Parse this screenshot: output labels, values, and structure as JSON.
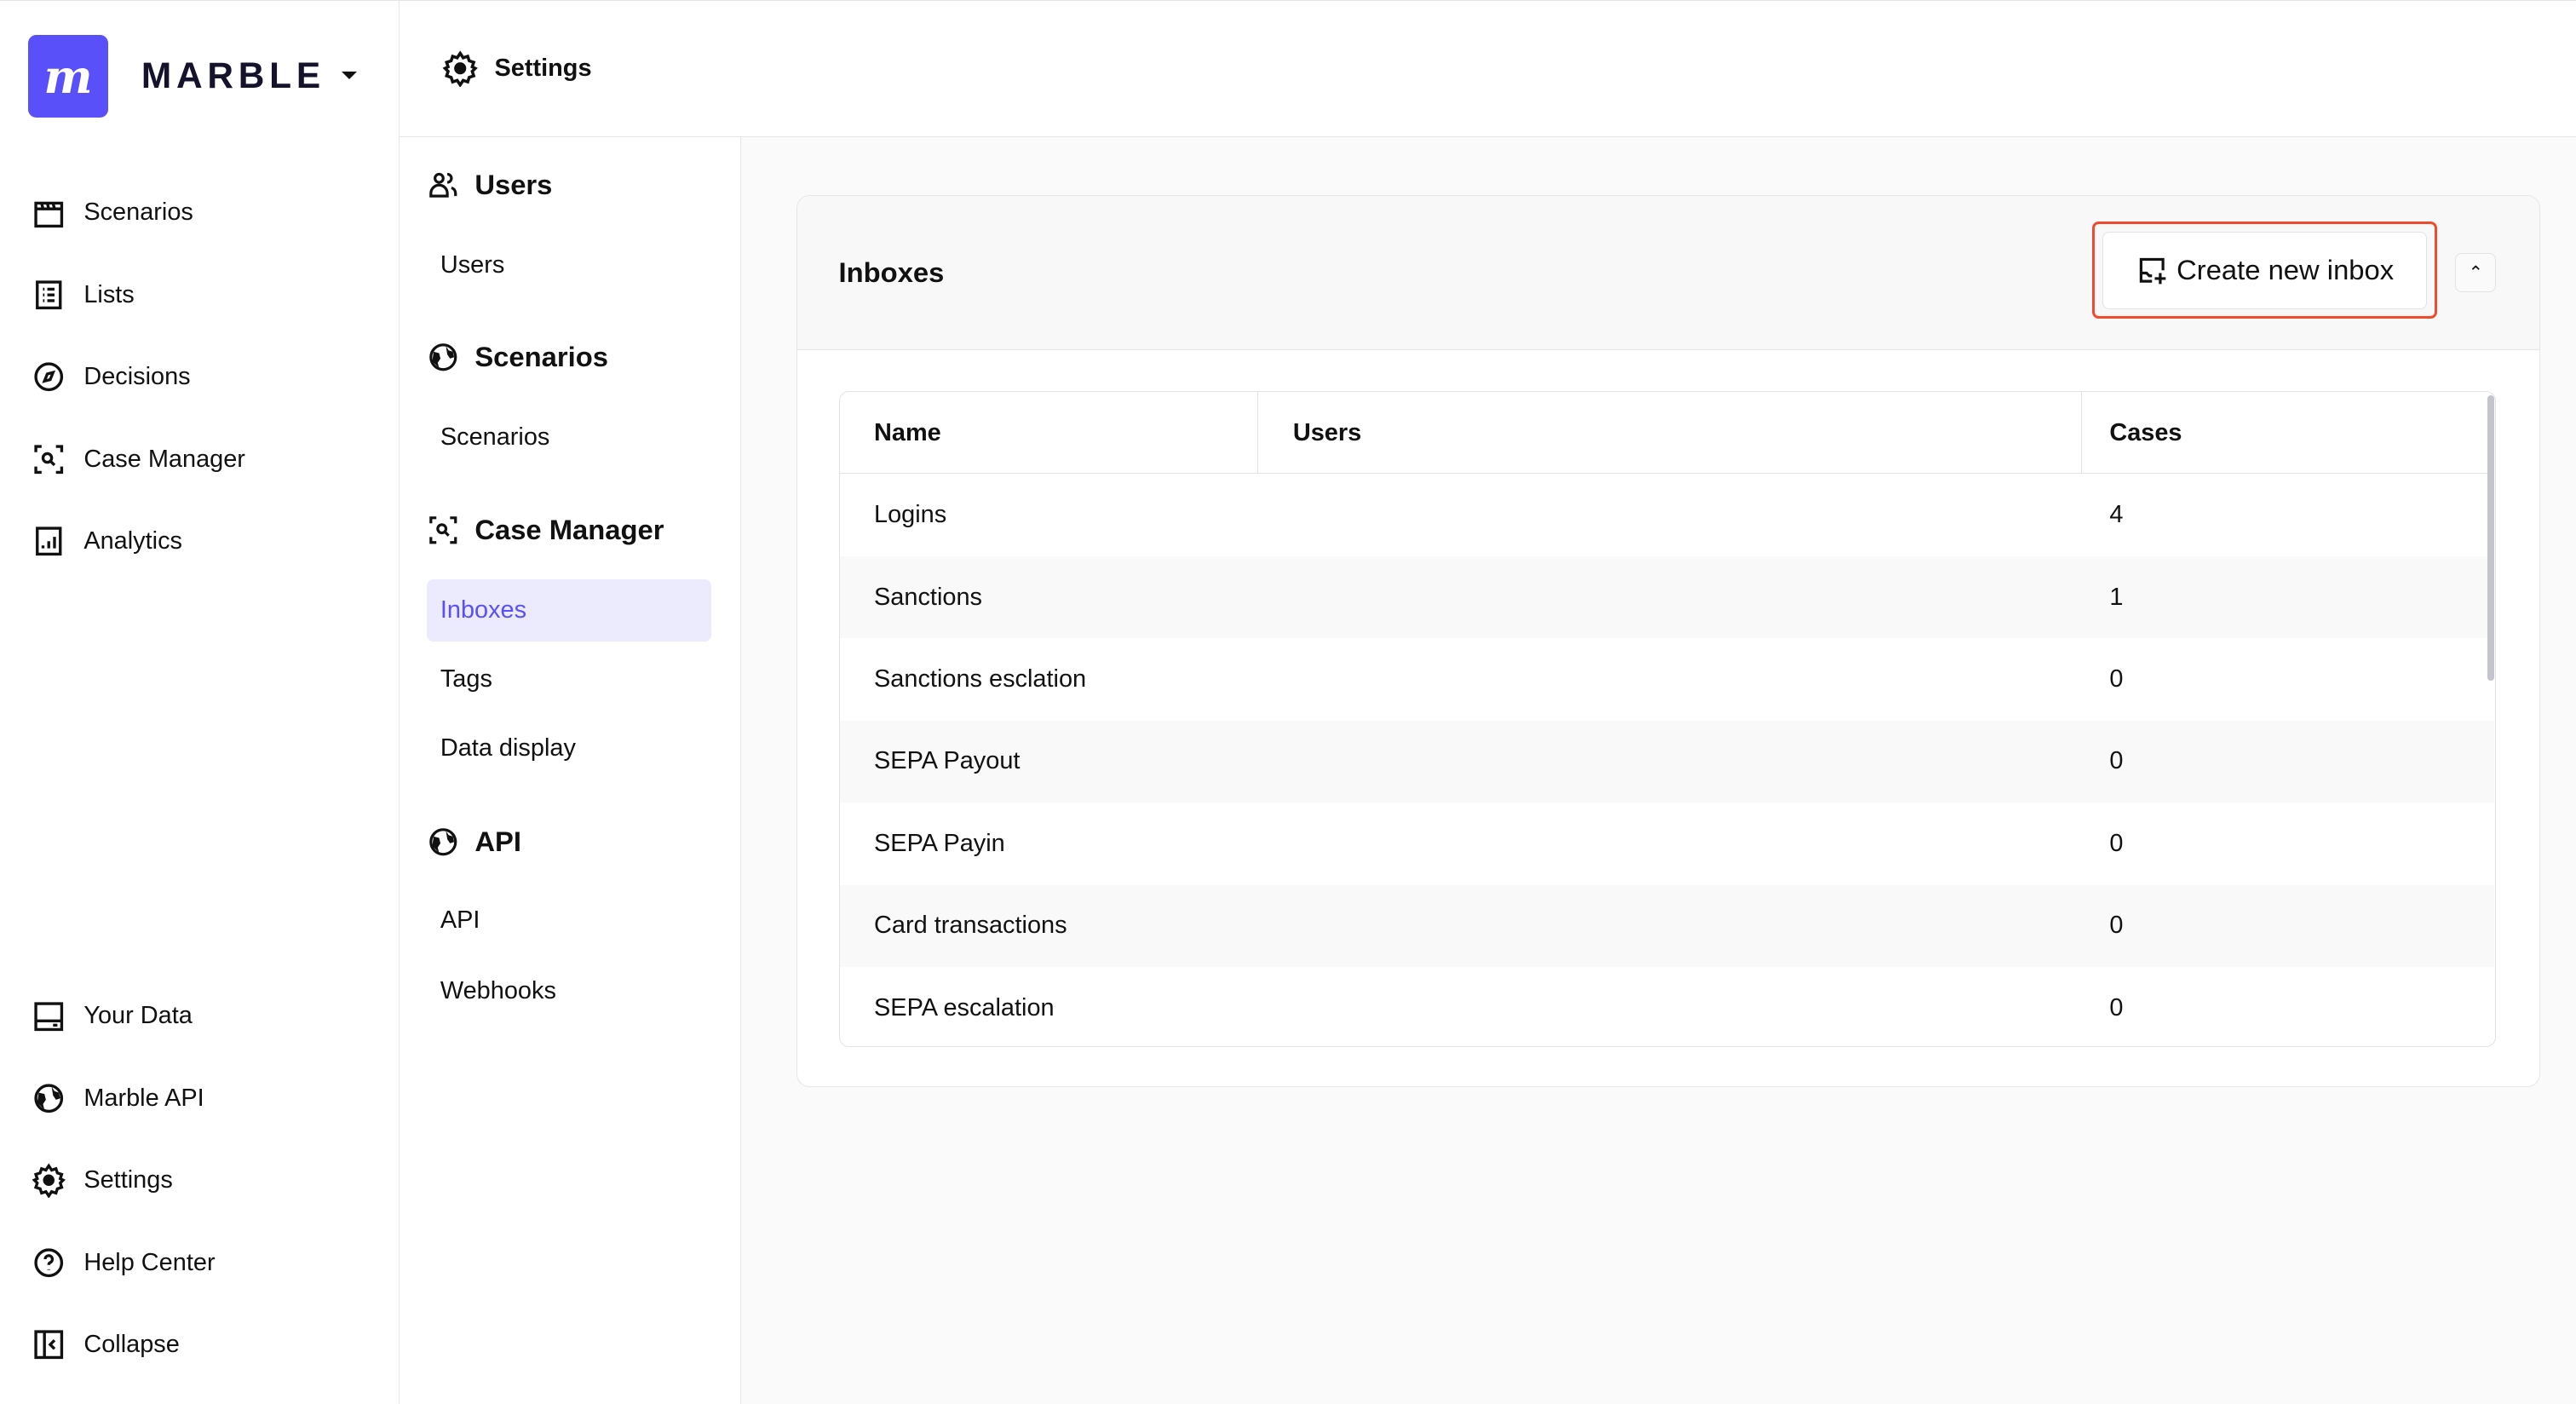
{
  "sidebar": {
    "brand": "MARBLE",
    "logo_letter": "m",
    "brand_color": "#5a50fa",
    "top_items": [
      {
        "label": "Scenarios",
        "icon": "clapperboard-icon"
      },
      {
        "label": "Lists",
        "icon": "list-icon"
      },
      {
        "label": "Decisions",
        "icon": "compass-icon"
      },
      {
        "label": "Case Manager",
        "icon": "case-search-icon"
      },
      {
        "label": "Analytics",
        "icon": "analytics-icon"
      }
    ],
    "bottom_items": [
      {
        "label": "Your Data",
        "icon": "data-icon"
      },
      {
        "label": "Marble API",
        "icon": "globe-icon"
      },
      {
        "label": "Settings",
        "icon": "gear-icon"
      },
      {
        "label": "Help Center",
        "icon": "help-icon"
      },
      {
        "label": "Collapse",
        "icon": "collapse-icon"
      }
    ]
  },
  "header": {
    "title": "Settings"
  },
  "settings_nav": {
    "sections": [
      {
        "title": "Users",
        "items": [
          "Users"
        ]
      },
      {
        "title": "Scenarios",
        "items": [
          "Scenarios"
        ]
      },
      {
        "title": "Case Manager",
        "items": [
          "Inboxes",
          "Tags",
          "Data display"
        ]
      },
      {
        "title": "API",
        "items": [
          "API",
          "Webhooks"
        ]
      }
    ],
    "active": "Inboxes"
  },
  "inboxes": {
    "title": "Inboxes",
    "create_button": "Create new inbox",
    "columns": [
      "Name",
      "Users",
      "Cases"
    ],
    "rows": [
      {
        "name": "Logins",
        "users": "",
        "cases": "4"
      },
      {
        "name": "Sanctions",
        "users": "",
        "cases": "1"
      },
      {
        "name": "Sanctions esclation",
        "users": "",
        "cases": "0"
      },
      {
        "name": "SEPA Payout",
        "users": "",
        "cases": "0"
      },
      {
        "name": "SEPA Payin",
        "users": "",
        "cases": "0"
      },
      {
        "name": "Card transactions",
        "users": "",
        "cases": "0"
      },
      {
        "name": "SEPA escalation",
        "users": "",
        "cases": "0"
      }
    ]
  }
}
